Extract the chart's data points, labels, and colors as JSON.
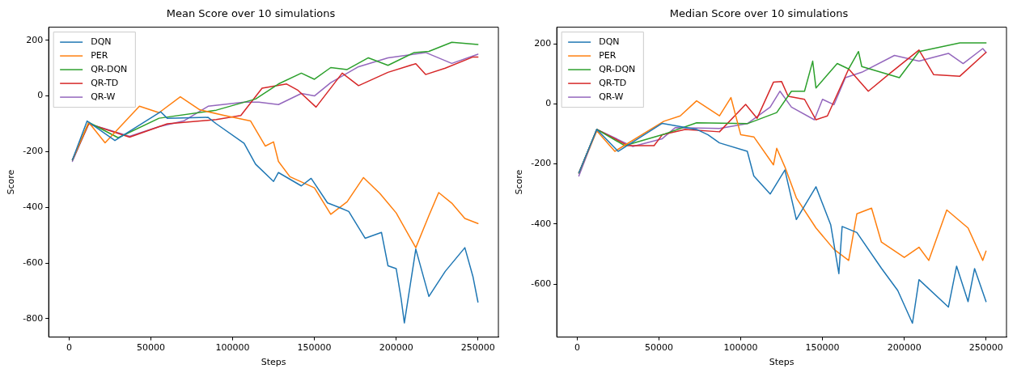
{
  "chart_data": [
    {
      "type": "line",
      "title": "Mean Score over 10 simulations",
      "xlabel": "Steps",
      "ylabel": "Score",
      "xlim": [
        -12500,
        262500
      ],
      "xticks": [
        0,
        50000,
        100000,
        150000,
        200000,
        250000
      ],
      "ylim": [
        -866,
        247
      ],
      "yticks": [
        -800,
        -600,
        -400,
        -200,
        0,
        200
      ],
      "grid": false,
      "legend": "top left",
      "marker": "none",
      "line_style": "solid",
      "series": [
        {
          "name": "DQN",
          "color": "#1f77b4",
          "x": [
            2000,
            11000,
            28000,
            56000,
            60000,
            85000,
            90000,
            107000,
            114000,
            125000,
            128000,
            142000,
            148000,
            158000,
            165000,
            171000,
            181000,
            191000,
            195000,
            200000,
            203000,
            205000,
            212000,
            220000,
            230000,
            242000,
            247000,
            250000
          ],
          "values": [
            -230,
            -90,
            -160,
            -57,
            -80,
            -77,
            -100,
            -170,
            -245,
            -307,
            -275,
            -323,
            -296,
            -384,
            -400,
            -415,
            -511,
            -490,
            -610,
            -620,
            -727,
            -815,
            -550,
            -720,
            -630,
            -545,
            -650,
            -740
          ]
        },
        {
          "name": "PER",
          "color": "#ff7f0e",
          "x": [
            2000,
            12000,
            22000,
            43000,
            55000,
            68000,
            80000,
            95000,
            111000,
            120000,
            125000,
            128000,
            135000,
            150000,
            160000,
            170000,
            180000,
            190000,
            200000,
            212000,
            220000,
            226000,
            234000,
            242000,
            250000
          ],
          "values": [
            -230,
            -95,
            -168,
            -37,
            -60,
            -3,
            -50,
            -70,
            -90,
            -180,
            -165,
            -235,
            -290,
            -330,
            -425,
            -380,
            -293,
            -350,
            -420,
            -545,
            -430,
            -347,
            -385,
            -440,
            -458
          ]
        },
        {
          "name": "QR-DQN",
          "color": "#2ca02c",
          "x": [
            2000,
            12000,
            30000,
            55000,
            90000,
            114000,
            128000,
            142000,
            150000,
            160000,
            170000,
            183000,
            195000,
            211000,
            220000,
            234000,
            250000
          ],
          "values": [
            -230,
            -95,
            -150,
            -80,
            -51,
            -11,
            43,
            82,
            60,
            102,
            95,
            137,
            110,
            156,
            160,
            193,
            185
          ]
        },
        {
          "name": "QR-TD",
          "color": "#d62728",
          "x": [
            2000,
            12000,
            37000,
            60000,
            90000,
            105000,
            118000,
            133000,
            140000,
            151000,
            167000,
            177000,
            195000,
            212000,
            218000,
            230000,
            247000,
            250000
          ],
          "values": [
            -230,
            -100,
            -148,
            -100,
            -85,
            -70,
            28,
            43,
            20,
            -40,
            82,
            37,
            85,
            116,
            77,
            100,
            140,
            140
          ]
        },
        {
          "name": "QR-W",
          "color": "#9467bd",
          "x": [
            2000,
            12000,
            37000,
            55000,
            70000,
            85000,
            107000,
            116000,
            128000,
            142000,
            150000,
            160000,
            177000,
            195000,
            218000,
            234000,
            250000
          ],
          "values": [
            -235,
            -100,
            -145,
            -110,
            -90,
            -37,
            -22,
            -22,
            -31,
            9,
            0,
            48,
            105,
            137,
            156,
            117,
            150
          ]
        }
      ]
    },
    {
      "type": "line",
      "title": "Median Score over 10 simulations",
      "xlabel": "Steps",
      "ylabel": "Score",
      "xlim": [
        -12500,
        262500
      ],
      "xticks": [
        0,
        50000,
        100000,
        150000,
        200000,
        250000
      ],
      "ylim": [
        -776,
        255
      ],
      "yticks": [
        -600,
        -400,
        -200,
        0,
        200
      ],
      "grid": false,
      "legend": "top left",
      "marker": "none",
      "line_style": "solid",
      "series": [
        {
          "name": "DQN",
          "color": "#1f77b4",
          "x": [
            1000,
            12000,
            25000,
            52000,
            73000,
            80000,
            87000,
            104000,
            108000,
            118000,
            127000,
            134000,
            146000,
            155000,
            160000,
            162000,
            171000,
            186000,
            196000,
            205000,
            209000,
            227000,
            232000,
            239000,
            243000,
            250000
          ],
          "values": [
            -230,
            -85,
            -158,
            -65,
            -85,
            -103,
            -130,
            -158,
            -240,
            -300,
            -220,
            -385,
            -276,
            -402,
            -565,
            -408,
            -428,
            -547,
            -621,
            -730,
            -585,
            -676,
            -540,
            -658,
            -548,
            -658
          ]
        },
        {
          "name": "PER",
          "color": "#ff7f0e",
          "x": [
            1000,
            12000,
            23000,
            53000,
            63000,
            73000,
            87000,
            94000,
            100000,
            108000,
            120000,
            122000,
            127000,
            134000,
            146000,
            157000,
            166000,
            171000,
            180000,
            186000,
            200000,
            209000,
            215000,
            226000,
            239000,
            248000,
            250000
          ],
          "values": [
            -230,
            -90,
            -158,
            -58,
            -40,
            10,
            -40,
            21,
            -103,
            -110,
            -203,
            -148,
            -210,
            -313,
            -413,
            -484,
            -521,
            -366,
            -347,
            -460,
            -511,
            -477,
            -521,
            -353,
            -413,
            -521,
            -490
          ]
        },
        {
          "name": "QR-DQN",
          "color": "#2ca02c",
          "x": [
            1000,
            12000,
            29000,
            52000,
            73000,
            104000,
            122000,
            131000,
            139000,
            144000,
            146000,
            159000,
            166000,
            172000,
            174000,
            197000,
            209000,
            234000,
            250000
          ],
          "values": [
            -230,
            -85,
            -139,
            -103,
            -63,
            -66,
            -29,
            42,
            42,
            142,
            53,
            134,
            116,
            174,
            124,
            87,
            174,
            203,
            203
          ]
        },
        {
          "name": "QR-TD",
          "color": "#d62728",
          "x": [
            1000,
            12000,
            31000,
            47000,
            52000,
            66000,
            87000,
            103000,
            110000,
            120000,
            125000,
            129000,
            139000,
            146000,
            153000,
            166000,
            178000,
            192000,
            209000,
            218000,
            234000,
            250000
          ],
          "values": [
            -230,
            -85,
            -139,
            -139,
            -103,
            -85,
            -93,
            -2,
            -48,
            72,
            74,
            25,
            15,
            -53,
            -40,
            116,
            42,
            105,
            179,
            97,
            92,
            171
          ]
        },
        {
          "name": "QR-W",
          "color": "#9467bd",
          "x": [
            1000,
            12000,
            34000,
            52000,
            60000,
            87000,
            104000,
            118000,
            124000,
            131000,
            145000,
            150000,
            157000,
            164000,
            174000,
            194000,
            209000,
            227000,
            236000,
            248000,
            250000
          ],
          "values": [
            -240,
            -85,
            -142,
            -116,
            -79,
            -82,
            -66,
            -11,
            42,
            -11,
            -53,
            15,
            -3,
            87,
            105,
            161,
            142,
            168,
            134,
            184,
            171
          ]
        }
      ]
    }
  ]
}
